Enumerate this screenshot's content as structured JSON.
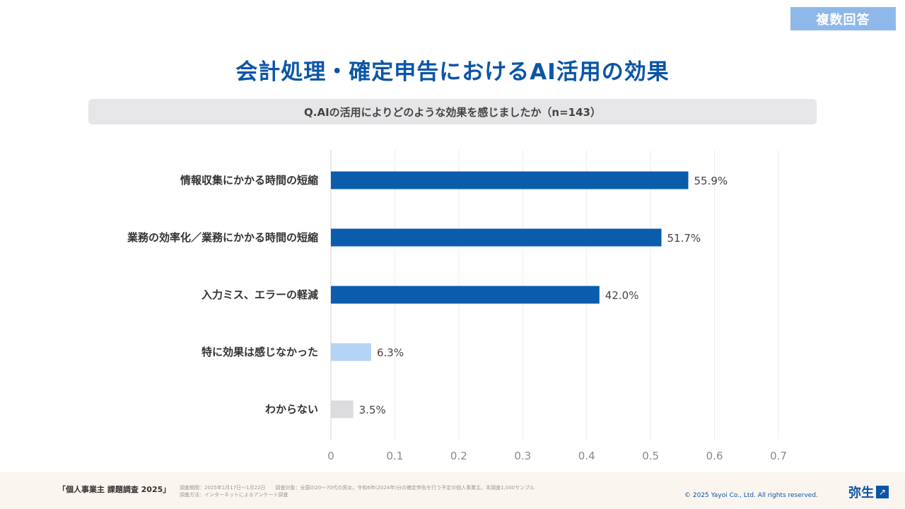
{
  "badge": "複数回答",
  "title": "会計処理・確定申告におけるAI活用の効果",
  "question": "Q.AIの活用によりどのような効果を感じましたか（n=143）",
  "chart_data": {
    "type": "bar",
    "orientation": "horizontal",
    "categories": [
      "情報収集にかかる時間の短縮",
      "業務の効率化／業務にかかる時間の短縮",
      "入力ミス、エラーの軽減",
      "特に効果は感じなかった",
      "わからない"
    ],
    "values": [
      0.559,
      0.517,
      0.42,
      0.063,
      0.035
    ],
    "value_labels": [
      "55.9%",
      "51.7%",
      "42.0%",
      "6.3%",
      "3.5%"
    ],
    "bar_colors": [
      "#0b5cad",
      "#0b5cad",
      "#0b5cad",
      "#b5d3f5",
      "#dcdcdf"
    ],
    "xlim": [
      0,
      0.7
    ],
    "xticks": [
      "0",
      "0.1",
      "0.2",
      "0.3",
      "0.4",
      "0.5",
      "0.6",
      "0.7"
    ],
    "grid": true,
    "xlabel": "",
    "ylabel": ""
  },
  "footer": {
    "brand": "「個人事業主 課題調査 2025」",
    "note_line1": "調査期間：2025年1月17日〜1月22日　　調査対象：全国の20〜70代の男女。令和6年(2024年)分の確定申告を行う予定の個人事業主。本調査1,000サンプル",
    "note_line2": "調査方法：インターネットによるアンケート調査",
    "copyright": "© 2025 Yayoi Co., Ltd.  All rights reserved.",
    "logo_text": "弥生",
    "logo_mark": "↗"
  }
}
